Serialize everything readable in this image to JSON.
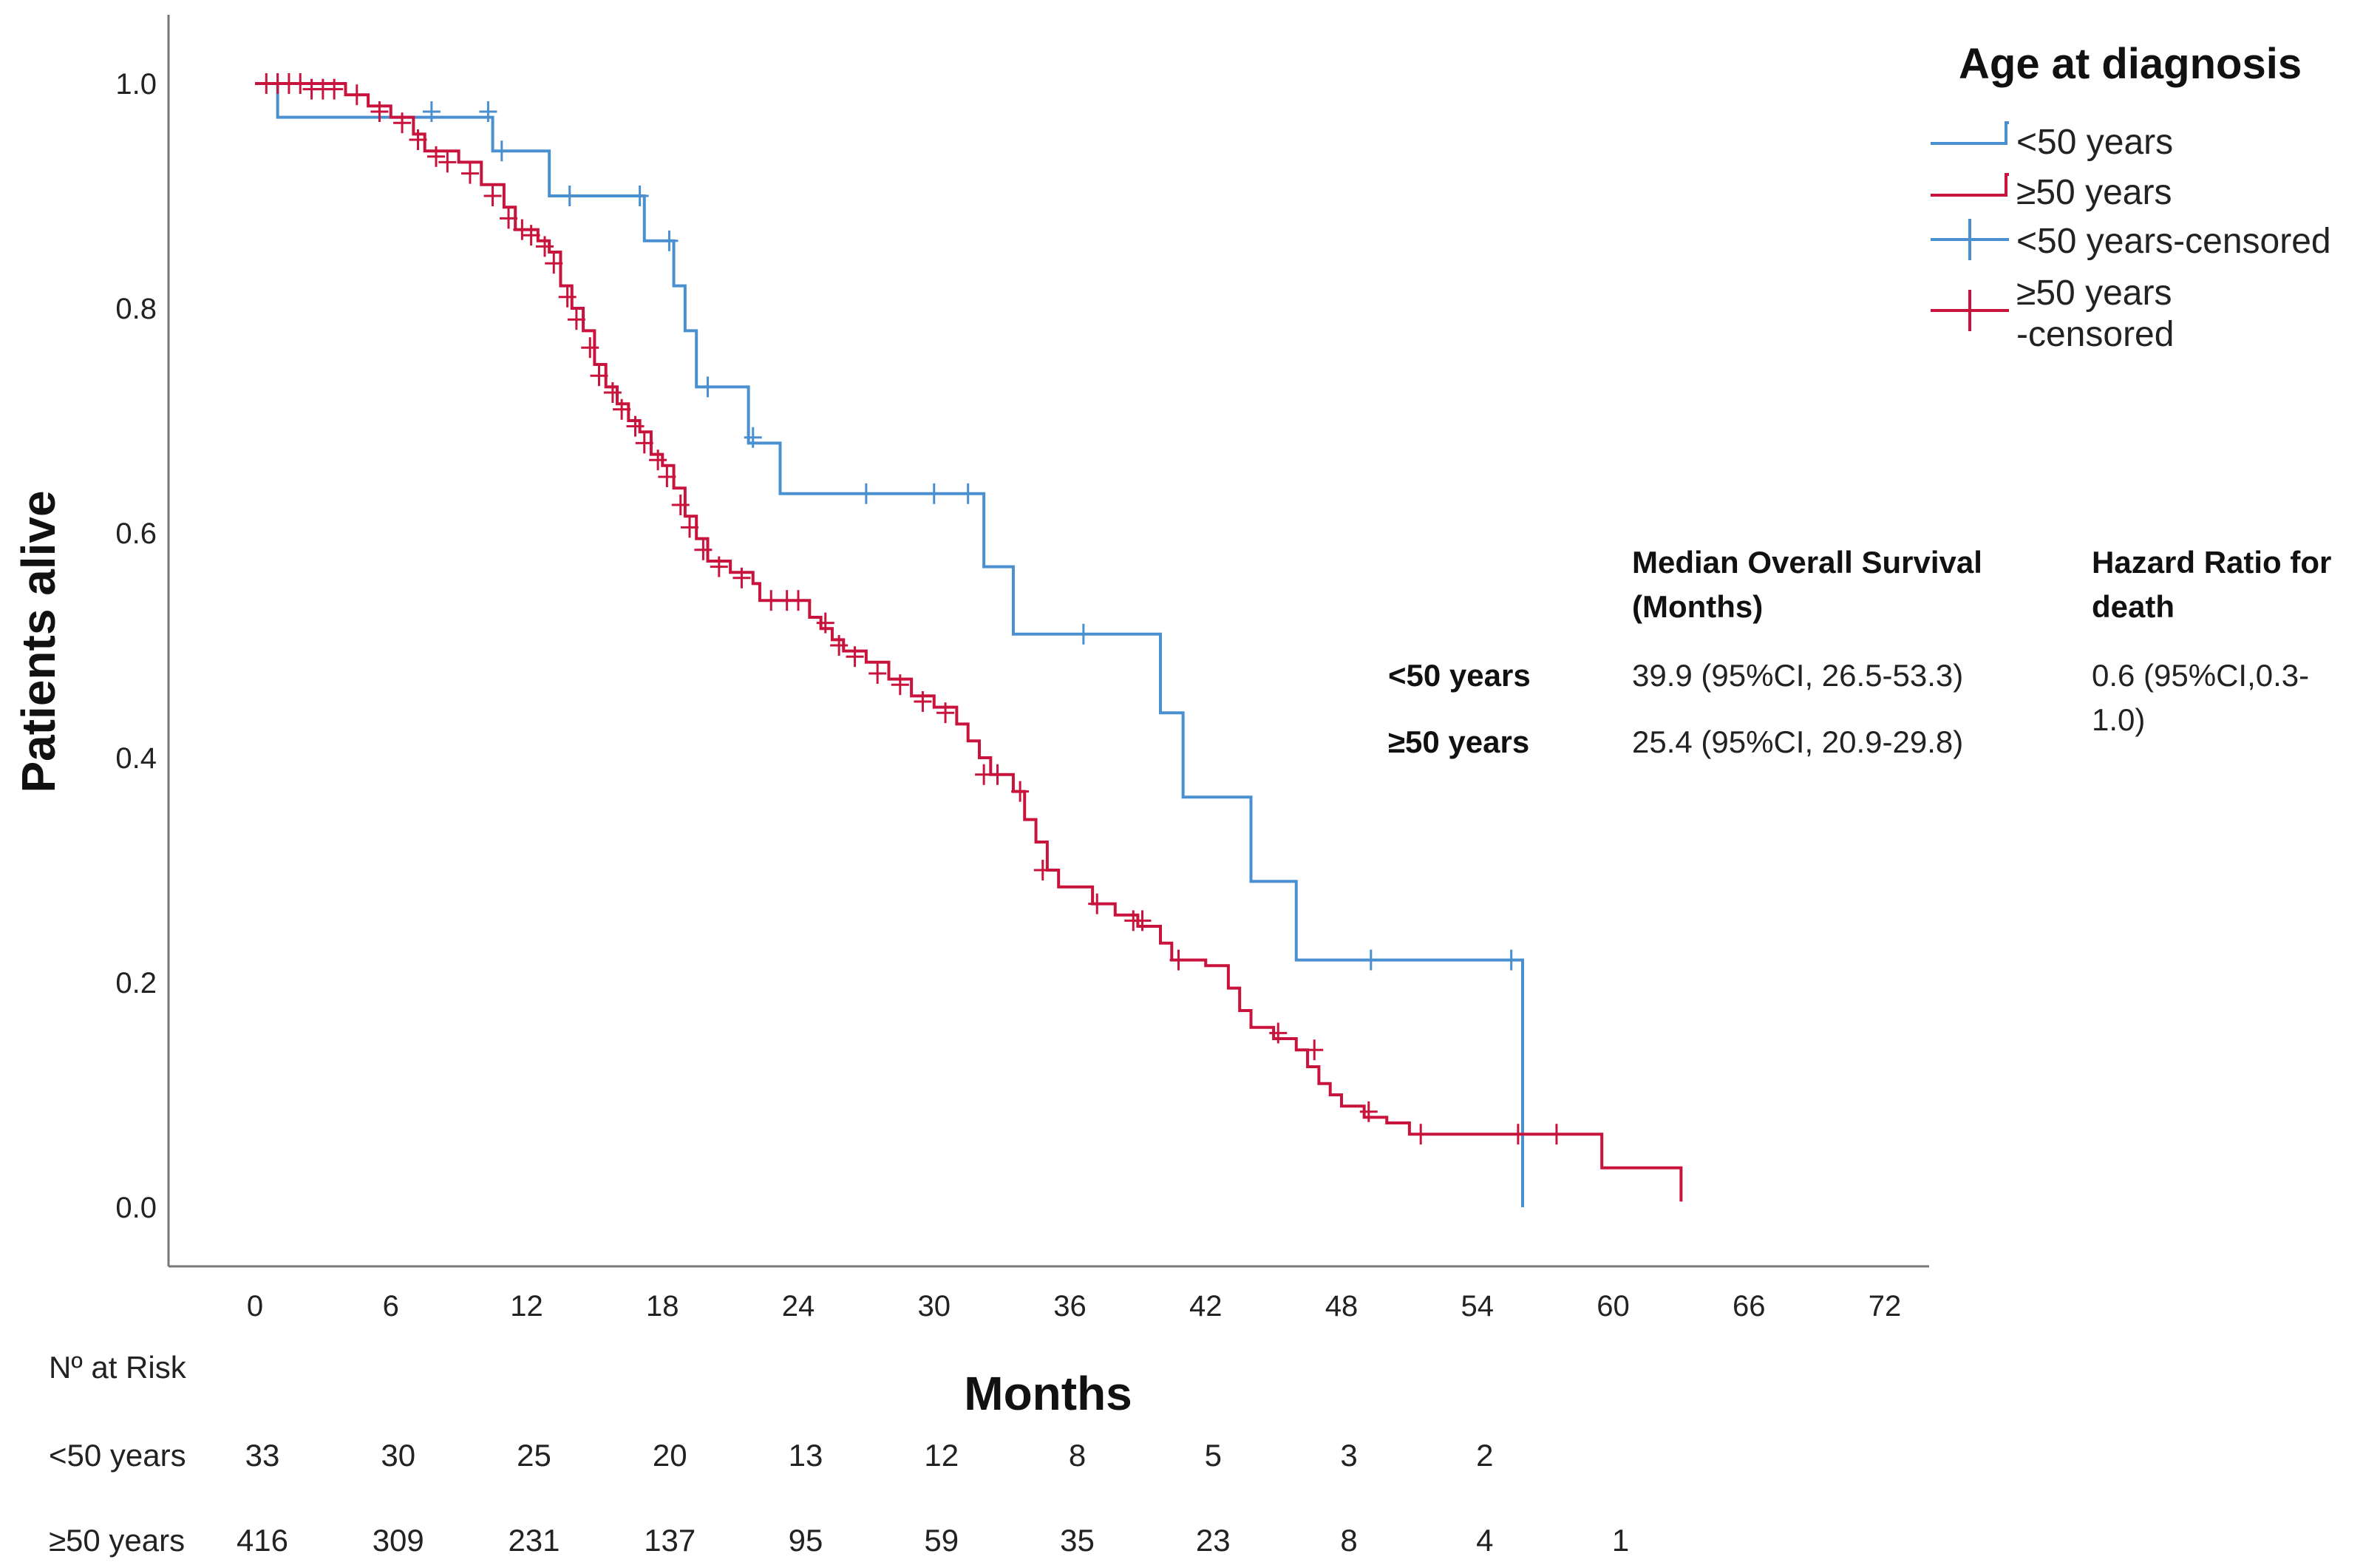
{
  "chart_data": {
    "type": "line",
    "subtype": "kaplan-meier",
    "title": "",
    "xlabel": "Months",
    "ylabel": "Patients alive",
    "xlim": [
      -6,
      78
    ],
    "ylim": [
      -0.05,
      1.06
    ],
    "xticks": [
      0,
      6,
      12,
      18,
      24,
      30,
      36,
      42,
      48,
      54,
      60,
      66,
      72
    ],
    "yticks": [
      0.0,
      0.2,
      0.4,
      0.6,
      0.8,
      1.0
    ],
    "ytick_labels": [
      "0.0",
      "0.2",
      "0.4",
      "0.6",
      "0.8",
      "1.0"
    ],
    "grid": false,
    "legend": {
      "title": "Age at diagnosis",
      "position": "top-right",
      "entries": [
        {
          "label": "<50 years",
          "kind": "step",
          "color": "#4a90d0"
        },
        {
          "label": "≥50 years",
          "kind": "step",
          "color": "#c8143c"
        },
        {
          "label": "<50 years-censored",
          "kind": "censor",
          "color": "#4a90d0"
        },
        {
          "label": "≥50 years",
          "label2": "-censored",
          "kind": "censor",
          "color": "#c8143c"
        }
      ]
    },
    "series": [
      {
        "name": "<50 years",
        "color": "#4a90d0",
        "steps": [
          [
            0,
            1.0
          ],
          [
            1,
            0.97
          ],
          [
            10.5,
            0.94
          ],
          [
            13,
            0.9
          ],
          [
            17.2,
            0.86
          ],
          [
            18.5,
            0.82
          ],
          [
            19,
            0.78
          ],
          [
            19.5,
            0.73
          ],
          [
            21.8,
            0.68
          ],
          [
            23.2,
            0.635
          ],
          [
            32.2,
            0.57
          ],
          [
            33.5,
            0.51
          ],
          [
            40,
            0.44
          ],
          [
            41,
            0.365
          ],
          [
            44,
            0.29
          ],
          [
            46,
            0.22
          ],
          [
            56,
            0.0
          ]
        ],
        "censored": [
          [
            1,
            1.0
          ],
          [
            7.8,
            0.975
          ],
          [
            10.3,
            0.975
          ],
          [
            10.9,
            0.94
          ],
          [
            13.9,
            0.9
          ],
          [
            17,
            0.9
          ],
          [
            18.3,
            0.86
          ],
          [
            20,
            0.73
          ],
          [
            22,
            0.685
          ],
          [
            27,
            0.635
          ],
          [
            30,
            0.635
          ],
          [
            31.5,
            0.635
          ],
          [
            36.6,
            0.51
          ],
          [
            49.3,
            0.22
          ],
          [
            55.5,
            0.22
          ]
        ]
      },
      {
        "name": "≥50 years",
        "color": "#c8143c",
        "steps": [
          [
            0,
            1.0
          ],
          [
            4,
            0.99
          ],
          [
            5,
            0.98
          ],
          [
            6,
            0.97
          ],
          [
            7,
            0.955
          ],
          [
            7.5,
            0.94
          ],
          [
            9,
            0.93
          ],
          [
            10,
            0.91
          ],
          [
            11,
            0.89
          ],
          [
            11.5,
            0.87
          ],
          [
            12.5,
            0.86
          ],
          [
            13,
            0.85
          ],
          [
            13.5,
            0.82
          ],
          [
            14,
            0.8
          ],
          [
            14.5,
            0.78
          ],
          [
            15,
            0.75
          ],
          [
            15.5,
            0.73
          ],
          [
            16,
            0.715
          ],
          [
            16.5,
            0.7
          ],
          [
            17,
            0.69
          ],
          [
            17.5,
            0.67
          ],
          [
            18,
            0.66
          ],
          [
            18.5,
            0.64
          ],
          [
            19,
            0.615
          ],
          [
            19.5,
            0.595
          ],
          [
            20,
            0.575
          ],
          [
            21,
            0.565
          ],
          [
            22,
            0.555
          ],
          [
            22.3,
            0.54
          ],
          [
            24.5,
            0.525
          ],
          [
            25,
            0.515
          ],
          [
            25.5,
            0.505
          ],
          [
            26,
            0.495
          ],
          [
            27,
            0.485
          ],
          [
            28,
            0.47
          ],
          [
            29,
            0.455
          ],
          [
            30,
            0.445
          ],
          [
            31,
            0.43
          ],
          [
            31.5,
            0.415
          ],
          [
            32,
            0.4
          ],
          [
            32.5,
            0.385
          ],
          [
            33.5,
            0.37
          ],
          [
            34,
            0.345
          ],
          [
            34.5,
            0.325
          ],
          [
            35,
            0.3
          ],
          [
            35.5,
            0.285
          ],
          [
            37,
            0.27
          ],
          [
            38,
            0.26
          ],
          [
            39,
            0.25
          ],
          [
            40,
            0.235
          ],
          [
            40.5,
            0.22
          ],
          [
            42,
            0.215
          ],
          [
            43,
            0.195
          ],
          [
            43.5,
            0.175
          ],
          [
            44,
            0.16
          ],
          [
            45,
            0.15
          ],
          [
            46,
            0.14
          ],
          [
            46.5,
            0.125
          ],
          [
            47,
            0.11
          ],
          [
            47.5,
            0.1
          ],
          [
            48,
            0.09
          ],
          [
            49,
            0.08
          ],
          [
            50,
            0.075
          ],
          [
            51,
            0.065
          ],
          [
            59.5,
            0.035
          ],
          [
            63,
            0.005
          ]
        ],
        "censored": [
          [
            0.5,
            1.0
          ],
          [
            1,
            1.0
          ],
          [
            1.5,
            1.0
          ],
          [
            2,
            1.0
          ],
          [
            2.5,
            0.995
          ],
          [
            3,
            0.995
          ],
          [
            3.5,
            0.995
          ],
          [
            4.5,
            0.99
          ],
          [
            5.5,
            0.975
          ],
          [
            6.5,
            0.965
          ],
          [
            7.2,
            0.95
          ],
          [
            8,
            0.935
          ],
          [
            8.5,
            0.93
          ],
          [
            9.5,
            0.92
          ],
          [
            10.5,
            0.9
          ],
          [
            11.2,
            0.88
          ],
          [
            11.8,
            0.87
          ],
          [
            12.2,
            0.865
          ],
          [
            12.8,
            0.855
          ],
          [
            13.2,
            0.84
          ],
          [
            13.8,
            0.81
          ],
          [
            14.2,
            0.79
          ],
          [
            14.8,
            0.765
          ],
          [
            15.2,
            0.74
          ],
          [
            15.8,
            0.725
          ],
          [
            16.2,
            0.71
          ],
          [
            16.8,
            0.695
          ],
          [
            17.2,
            0.68
          ],
          [
            17.8,
            0.665
          ],
          [
            18.2,
            0.65
          ],
          [
            18.8,
            0.625
          ],
          [
            19.2,
            0.605
          ],
          [
            19.8,
            0.585
          ],
          [
            20.5,
            0.57
          ],
          [
            21.5,
            0.56
          ],
          [
            22.8,
            0.54
          ],
          [
            23.5,
            0.54
          ],
          [
            24,
            0.54
          ],
          [
            25.2,
            0.52
          ],
          [
            25.8,
            0.5
          ],
          [
            26.5,
            0.49
          ],
          [
            27.5,
            0.475
          ],
          [
            28.5,
            0.465
          ],
          [
            29.5,
            0.45
          ],
          [
            30.5,
            0.44
          ],
          [
            32.2,
            0.385
          ],
          [
            32.8,
            0.385
          ],
          [
            33.8,
            0.37
          ],
          [
            34.8,
            0.3
          ],
          [
            37.2,
            0.27
          ],
          [
            38.8,
            0.255
          ],
          [
            39.2,
            0.255
          ],
          [
            40.8,
            0.22
          ],
          [
            45.2,
            0.155
          ],
          [
            46.8,
            0.14
          ],
          [
            49.2,
            0.085
          ],
          [
            51.5,
            0.065
          ],
          [
            55.8,
            0.065
          ],
          [
            57.5,
            0.065
          ]
        ]
      }
    ],
    "stats_table": {
      "col1_header_line1": "Median Overall Survival",
      "col1_header_line2": "(Months)",
      "col2_header_line1": "Hazard Ratio for",
      "col2_header_line2": "death",
      "rows": [
        {
          "label": "<50 years",
          "median": "39.9 (95%CI, 26.5-53.3)"
        },
        {
          "label": "≥50 years",
          "median": "25.4 (95%CI, 20.9-29.8)"
        }
      ],
      "hr_line1": "0.6 (95%CI,0.3-",
      "hr_line2": "1.0)"
    },
    "risk_table": {
      "title": "Nº at Risk",
      "rows": [
        {
          "label": "<50 years",
          "values": [
            "33",
            "30",
            "25",
            "20",
            "13",
            "12",
            "8",
            "5",
            "3",
            "2"
          ]
        },
        {
          "label": "≥50 years",
          "values": [
            "416",
            "309",
            "231",
            "137",
            "95",
            "59",
            "35",
            "23",
            "8",
            "4",
            "1"
          ]
        }
      ]
    }
  }
}
